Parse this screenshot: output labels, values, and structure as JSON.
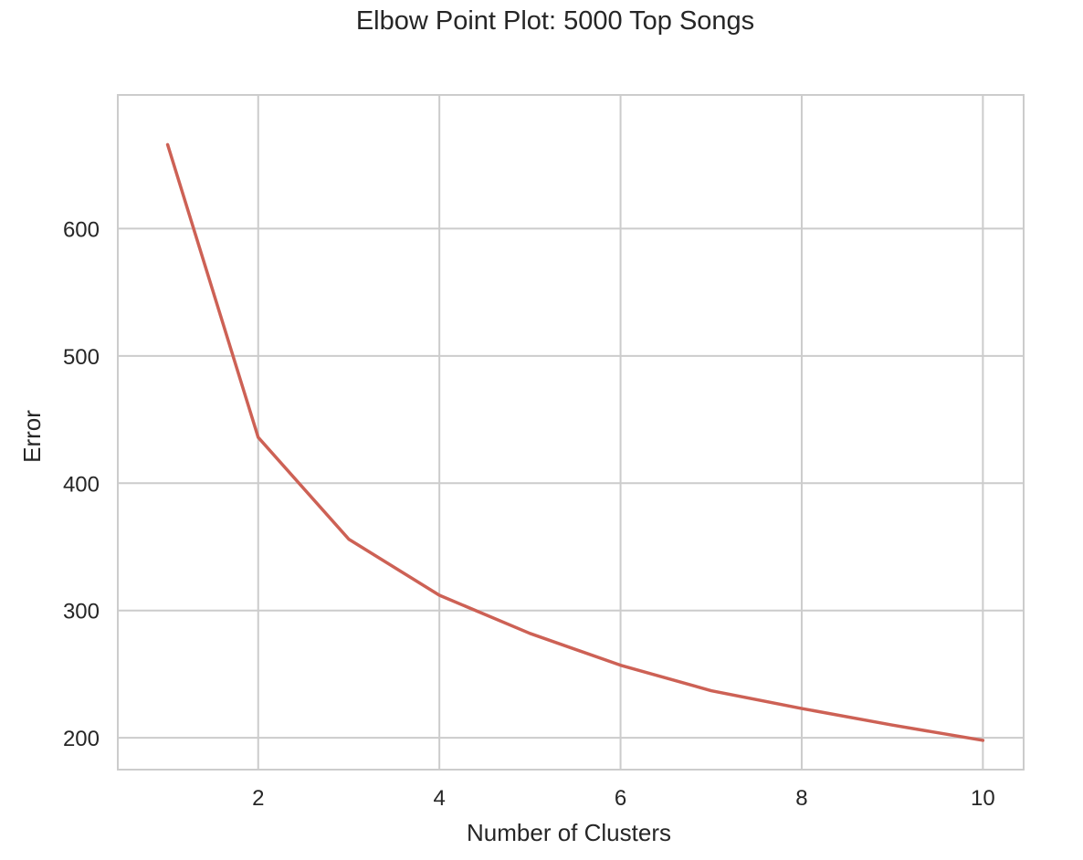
{
  "chart_data": {
    "type": "line",
    "title": "Elbow Point Plot: 5000 Top Songs",
    "xlabel": "Number of Clusters",
    "ylabel": "Error",
    "x": [
      1,
      2,
      3,
      4,
      5,
      6,
      7,
      8,
      9,
      10
    ],
    "series": [
      {
        "values": [
          666,
          436,
          356,
          312,
          282,
          257,
          237,
          223,
          210,
          198
        ],
        "color": "#cd6155"
      }
    ],
    "xlim": [
      0.45,
      10.45
    ],
    "ylim": [
      175,
      705
    ],
    "xticks": [
      2,
      4,
      6,
      8,
      10
    ],
    "yticks": [
      200,
      300,
      400,
      500,
      600
    ],
    "grid": true,
    "legend": "none"
  }
}
